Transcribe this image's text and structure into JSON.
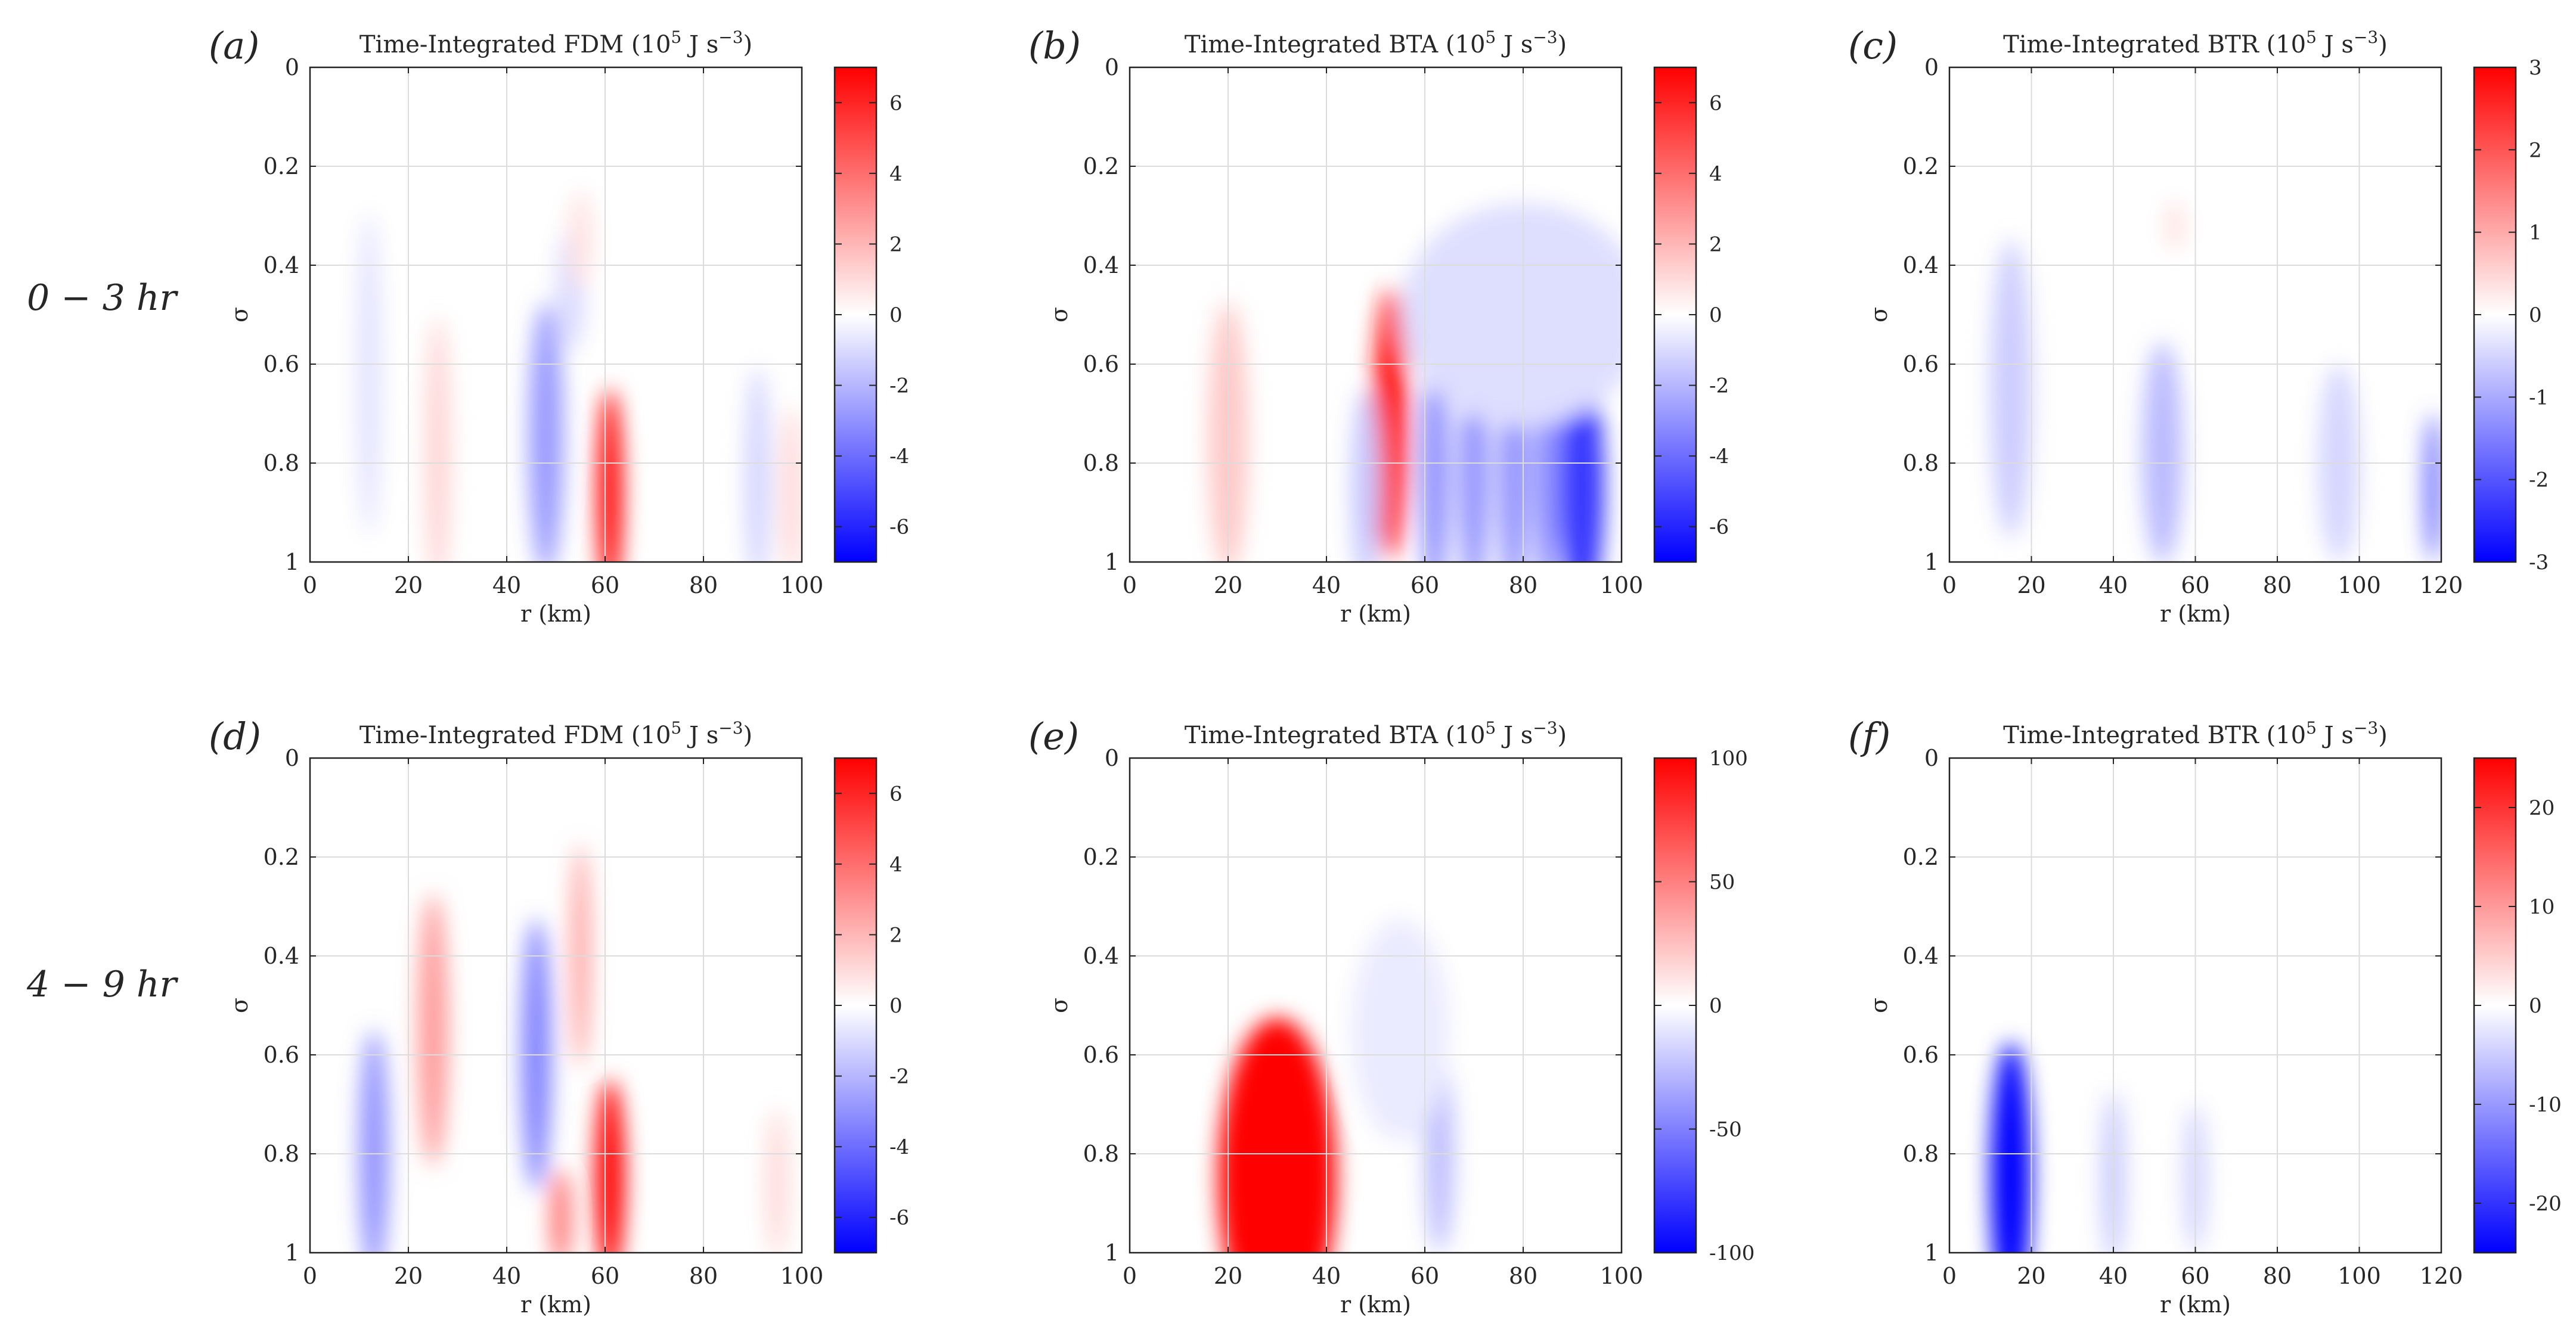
{
  "figure": {
    "row_labels": [
      "0 − 3 hr",
      "4 − 9 hr"
    ],
    "colors": {
      "positive": "#ff0000",
      "negative": "#0000ff",
      "neutral": "#ffffff",
      "grid": "#dcdcdc",
      "axis": "#222222",
      "text": "#262626"
    }
  },
  "chart_data": [
    {
      "type": "heatmap",
      "panel_label": "(a)",
      "title": "Time-Integrated FDM (10^5 J s^-3)",
      "title_parts": {
        "prefix": "Time-Integrated FDM (10",
        "sup1": "5",
        "mid": " J s",
        "sup2": "−3",
        "suffix": ")"
      },
      "xlabel": "r (km)",
      "ylabel": "σ",
      "xlim": [
        0,
        100
      ],
      "ylim": [
        0,
        1
      ],
      "y_reversed": true,
      "x_ticks": [
        0,
        20,
        40,
        60,
        80,
        100
      ],
      "y_ticks": [
        0,
        0.2,
        0.4,
        0.6,
        0.8,
        1
      ],
      "y_tick_labels": [
        "0",
        "0.2",
        "0.4",
        "0.6",
        "0.8",
        "1"
      ],
      "clim": [
        -7,
        7
      ],
      "colorbar_ticks": [
        -6,
        -4,
        -2,
        0,
        2,
        4,
        6
      ],
      "features": [
        {
          "r": 12,
          "sigma": 0.62,
          "width_km": 2.5,
          "height": 0.65,
          "value": -0.8
        },
        {
          "r": 26,
          "sigma": 0.78,
          "width_km": 2.5,
          "height": 0.55,
          "value": 1.2
        },
        {
          "r": 48,
          "sigma": 0.75,
          "width_km": 3.5,
          "height": 0.55,
          "value": -2.8
        },
        {
          "r": 53,
          "sigma": 0.45,
          "width_km": 3,
          "height": 0.25,
          "value": -1.0
        },
        {
          "r": 55,
          "sigma": 0.35,
          "width_km": 2.5,
          "height": 0.2,
          "value": 0.8
        },
        {
          "r": 61,
          "sigma": 0.86,
          "width_km": 2.5,
          "height": 0.42,
          "value": 7.0
        },
        {
          "r": 91,
          "sigma": 0.83,
          "width_km": 2.5,
          "height": 0.45,
          "value": -1.2
        },
        {
          "r": 98,
          "sigma": 0.86,
          "width_km": 2,
          "height": 0.35,
          "value": 1.2
        }
      ]
    },
    {
      "type": "heatmap",
      "panel_label": "(b)",
      "title": "Time-Integrated BTA (10^5 J s^-3)",
      "title_parts": {
        "prefix": "Time-Integrated BTA (10",
        "sup1": "5",
        "mid": " J s",
        "sup2": "−3",
        "suffix": ")"
      },
      "xlabel": "r (km)",
      "ylabel": "σ",
      "xlim": [
        0,
        100
      ],
      "ylim": [
        0,
        1
      ],
      "y_reversed": true,
      "x_ticks": [
        0,
        20,
        40,
        60,
        80,
        100
      ],
      "y_ticks": [
        0,
        0.2,
        0.4,
        0.6,
        0.8,
        1
      ],
      "y_tick_labels": [
        "0",
        "0.2",
        "0.4",
        "0.6",
        "0.8",
        "1"
      ],
      "clim": [
        -7,
        7
      ],
      "colorbar_ticks": [
        -6,
        -4,
        -2,
        0,
        2,
        4,
        6
      ],
      "features": [
        {
          "r": 20,
          "sigma": 0.75,
          "width_km": 4,
          "height": 0.55,
          "value": 1.5
        },
        {
          "r": 53,
          "sigma": 0.72,
          "width_km": 3.5,
          "height": 0.55,
          "value": 6.5
        },
        {
          "r": 48,
          "sigma": 0.85,
          "width_km": 3,
          "height": 0.4,
          "value": -1.5
        },
        {
          "r": 62,
          "sigma": 0.82,
          "width_km": 3,
          "height": 0.5,
          "value": -3.0
        },
        {
          "r": 70,
          "sigma": 0.82,
          "width_km": 3,
          "height": 0.5,
          "value": -3.0
        },
        {
          "r": 78,
          "sigma": 0.82,
          "width_km": 3,
          "height": 0.5,
          "value": -3.0
        },
        {
          "r": 85,
          "sigma": 0.82,
          "width_km": 3,
          "height": 0.5,
          "value": -3.0
        },
        {
          "r": 92,
          "sigma": 0.85,
          "width_km": 4.5,
          "height": 0.5,
          "value": -5.5
        },
        {
          "r": 80,
          "sigma": 0.5,
          "width_km": 25,
          "height": 0.45,
          "value": -0.9
        }
      ]
    },
    {
      "type": "heatmap",
      "panel_label": "(c)",
      "title": "Time-Integrated BTR (10^5 J s^-3)",
      "title_parts": {
        "prefix": "Time-Integrated BTR (10",
        "sup1": "5",
        "mid": " J s",
        "sup2": "−3",
        "suffix": ")"
      },
      "xlabel": "r (km)",
      "ylabel": "σ",
      "xlim": [
        0,
        120
      ],
      "ylim": [
        0,
        1
      ],
      "y_reversed": true,
      "x_ticks": [
        0,
        20,
        40,
        60,
        80,
        100,
        120
      ],
      "y_ticks": [
        0,
        0.2,
        0.4,
        0.6,
        0.8,
        1
      ],
      "y_tick_labels": [
        "0",
        "0.2",
        "0.4",
        "0.6",
        "0.8",
        "1"
      ],
      "clim": [
        -3,
        3
      ],
      "colorbar_ticks": [
        -3,
        -2,
        -1,
        0,
        1,
        2,
        3
      ],
      "features": [
        {
          "r": 15,
          "sigma": 0.65,
          "width_km": 5,
          "height": 0.6,
          "value": -0.6
        },
        {
          "r": 52,
          "sigma": 0.78,
          "width_km": 5,
          "height": 0.45,
          "value": -0.8
        },
        {
          "r": 55,
          "sigma": 0.32,
          "width_km": 2,
          "height": 0.1,
          "value": 0.4
        },
        {
          "r": 95,
          "sigma": 0.8,
          "width_km": 5,
          "height": 0.4,
          "value": -0.5
        },
        {
          "r": 118,
          "sigma": 0.85,
          "width_km": 2,
          "height": 0.3,
          "value": -1.8
        }
      ]
    },
    {
      "type": "heatmap",
      "panel_label": "(d)",
      "title": "Time-Integrated FDM (10^5 J s^-3)",
      "title_parts": {
        "prefix": "Time-Integrated FDM (10",
        "sup1": "5",
        "mid": " J s",
        "sup2": "−3",
        "suffix": ")"
      },
      "xlabel": "r (km)",
      "ylabel": "σ",
      "xlim": [
        0,
        100
      ],
      "ylim": [
        0,
        1
      ],
      "y_reversed": true,
      "x_ticks": [
        0,
        20,
        40,
        60,
        80,
        100
      ],
      "y_ticks": [
        0,
        0.2,
        0.4,
        0.6,
        0.8,
        1
      ],
      "y_tick_labels": [
        "0",
        "0.2",
        "0.4",
        "0.6",
        "0.8",
        "1"
      ],
      "clim": [
        -7,
        7
      ],
      "colorbar_ticks": [
        -6,
        -4,
        -2,
        0,
        2,
        4,
        6
      ],
      "features": [
        {
          "r": 13,
          "sigma": 0.8,
          "width_km": 3,
          "height": 0.5,
          "value": -3.0
        },
        {
          "r": 25,
          "sigma": 0.55,
          "width_km": 3,
          "height": 0.55,
          "value": 2.8
        },
        {
          "r": 46,
          "sigma": 0.6,
          "width_km": 3,
          "height": 0.55,
          "value": -3.5
        },
        {
          "r": 51,
          "sigma": 0.93,
          "width_km": 2,
          "height": 0.2,
          "value": 4.0
        },
        {
          "r": 55,
          "sigma": 0.4,
          "width_km": 2,
          "height": 0.45,
          "value": 2.5
        },
        {
          "r": 61,
          "sigma": 0.85,
          "width_km": 3,
          "height": 0.4,
          "value": 7.0
        },
        {
          "r": 95,
          "sigma": 0.86,
          "width_km": 2.5,
          "height": 0.3,
          "value": 1.0
        }
      ]
    },
    {
      "type": "heatmap",
      "panel_label": "(e)",
      "title": "Time-Integrated BTA (10^5 J s^-3)",
      "title_parts": {
        "prefix": "Time-Integrated BTA (10",
        "sup1": "5",
        "mid": " J s",
        "sup2": "−3",
        "suffix": ")"
      },
      "xlabel": "r (km)",
      "ylabel": "σ",
      "xlim": [
        0,
        100
      ],
      "ylim": [
        0,
        1
      ],
      "y_reversed": true,
      "x_ticks": [
        0,
        20,
        40,
        60,
        80,
        100
      ],
      "y_ticks": [
        0,
        0.2,
        0.4,
        0.6,
        0.8,
        1
      ],
      "y_tick_labels": [
        "0",
        "0.2",
        "0.4",
        "0.6",
        "0.8",
        "1"
      ],
      "clim": [
        -100,
        100
      ],
      "colorbar_ticks": [
        -100,
        -50,
        0,
        50,
        100
      ],
      "features": [
        {
          "r": 30,
          "sigma": 0.85,
          "width_km": 12,
          "height": 0.65,
          "value": 100
        },
        {
          "r": 63,
          "sigma": 0.8,
          "width_km": 3,
          "height": 0.4,
          "value": -25
        },
        {
          "r": 55,
          "sigma": 0.55,
          "width_km": 10,
          "height": 0.45,
          "value": -8
        }
      ]
    },
    {
      "type": "heatmap",
      "panel_label": "(f)",
      "title": "Time-Integrated BTR (10^5 J s^-3)",
      "title_parts": {
        "prefix": "Time-Integrated BTR (10",
        "sup1": "5",
        "mid": " J s",
        "sup2": "−3",
        "suffix": ")"
      },
      "xlabel": "r (km)",
      "ylabel": "σ",
      "xlim": [
        0,
        120
      ],
      "ylim": [
        0,
        1
      ],
      "y_reversed": true,
      "x_ticks": [
        0,
        20,
        40,
        60,
        80,
        100,
        120
      ],
      "y_ticks": [
        0,
        0.2,
        0.4,
        0.6,
        0.8,
        1
      ],
      "y_tick_labels": [
        "0",
        "0.2",
        "0.4",
        "0.6",
        "0.8",
        "1"
      ],
      "clim": [
        -25,
        25
      ],
      "colorbar_ticks": [
        -20,
        -10,
        0,
        10,
        20
      ],
      "features": [
        {
          "r": 15,
          "sigma": 0.85,
          "width_km": 5,
          "height": 0.55,
          "value": -25
        },
        {
          "r": 40,
          "sigma": 0.85,
          "width_km": 3,
          "height": 0.35,
          "value": -5
        },
        {
          "r": 60,
          "sigma": 0.85,
          "width_km": 3,
          "height": 0.3,
          "value": -4
        }
      ]
    }
  ]
}
